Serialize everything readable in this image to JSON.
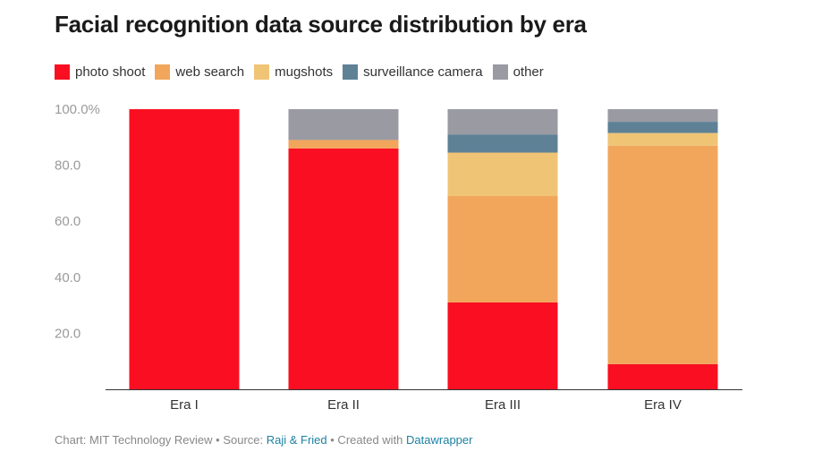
{
  "chart_data": {
    "type": "bar",
    "stacked": true,
    "title": "Facial recognition data source distribution by era",
    "categories": [
      "Era I",
      "Era II",
      "Era III",
      "Era IV"
    ],
    "series": [
      {
        "name": "photo shoot",
        "color": "#f90f21",
        "values": [
          100,
          86,
          31,
          9
        ]
      },
      {
        "name": "web search",
        "color": "#f1a65b",
        "values": [
          0,
          3,
          38,
          78
        ]
      },
      {
        "name": "mugshots",
        "color": "#efc575",
        "values": [
          0,
          0,
          15.5,
          4.5
        ]
      },
      {
        "name": "surveillance camera",
        "color": "#5e8196",
        "values": [
          0,
          0,
          6.5,
          4
        ]
      },
      {
        "name": "other",
        "color": "#9a9aa2",
        "values": [
          0,
          11,
          9,
          4.5
        ]
      }
    ],
    "yticks": [
      "100.0%",
      "80.0",
      "60.0",
      "40.0",
      "20.0"
    ],
    "ylim": [
      0,
      100
    ],
    "grid": false,
    "legend_position": "top-left"
  },
  "footer": {
    "prefix": "Chart: MIT Technology Review • Source: ",
    "source": "Raji & Fried",
    "middle": " • Created with ",
    "tool": "Datawrapper"
  }
}
